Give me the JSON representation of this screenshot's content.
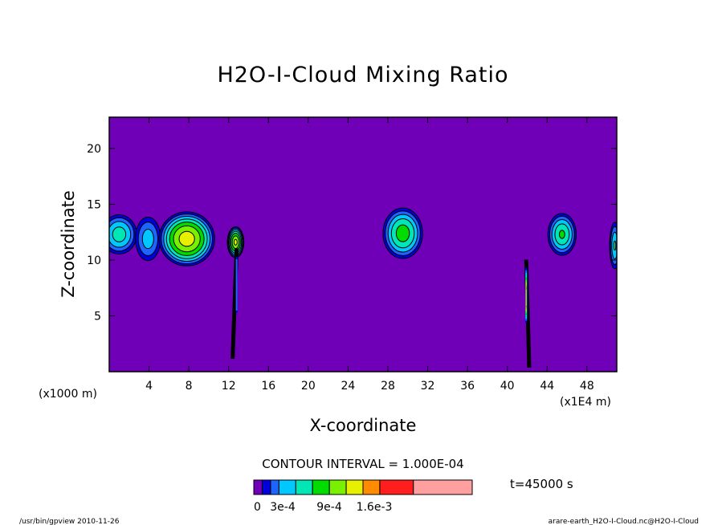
{
  "chart_data": {
    "type": "heatmap",
    "title": "H2O-I-Cloud Mixing Ratio",
    "xlabel": "X-coordinate",
    "ylabel": "Z-coordinate",
    "x_unit_label": "(x1000 m)",
    "x_scale_label": "(x1E4 m)",
    "xlim": [
      0,
      51
    ],
    "ylim": [
      0,
      22.8
    ],
    "x_ticks": [
      4,
      8,
      12,
      16,
      20,
      24,
      28,
      32,
      36,
      40,
      44,
      48
    ],
    "y_ticks": [
      5,
      10,
      15,
      20
    ],
    "background_color": "#7000b8",
    "levels": [
      0,
      0.0001,
      0.0002,
      0.0003,
      0.0004,
      0.0005,
      0.0006,
      0.0007,
      0.0008,
      0.0009,
      0.0012,
      0.0016,
      0.002
    ],
    "level_colors": [
      "#7000b8",
      "#0000dc",
      "#1e64ff",
      "#00c8ff",
      "#00e6b4",
      "#00dc00",
      "#78f000",
      "#e6f000",
      "#ff8c00",
      "#ff1e1e",
      "#ffa0a0"
    ],
    "colorbar_labels": [
      "0",
      "3e-4",
      "9e-4",
      "1.6e-3"
    ],
    "contour_interval_text": "CONTOUR INTERVAL = 1.000E-04",
    "cells": [
      {
        "x": 1.0,
        "z": 12.3,
        "rx": 2.0,
        "rz": 2.0,
        "peak": 0.00045
      },
      {
        "x": 3.9,
        "z": 11.9,
        "rx": 1.5,
        "rz": 2.3,
        "peak": 0.00035
      },
      {
        "x": 7.8,
        "z": 11.9,
        "rx": 3.0,
        "rz": 2.6,
        "peak": 0.00075
      },
      {
        "x": 12.7,
        "z": 11.6,
        "rx": 0.9,
        "rz": 1.5,
        "peak": 0.0007
      },
      {
        "x": 29.5,
        "z": 12.4,
        "rx": 2.2,
        "rz": 2.5,
        "peak": 0.00055
      },
      {
        "x": 45.5,
        "z": 12.3,
        "rx": 1.6,
        "rz": 2.1,
        "peak": 0.0005
      },
      {
        "x": 50.8,
        "z": 11.3,
        "rx": 0.6,
        "rz": 2.4,
        "peak": 0.0004
      }
    ],
    "columns": [
      {
        "x_top": 12.8,
        "x_bottom": 12.4,
        "z_top": 11.0,
        "z_bottom": 1.2,
        "peak": 0.0002
      },
      {
        "x_top": 41.9,
        "x_bottom": 42.2,
        "z_top": 10.0,
        "z_bottom": 0.4,
        "peak": 0.0013
      }
    ]
  },
  "time_label": "t=45000 s",
  "footer": {
    "left": "/usr/bin/gpview   2010-11-26",
    "right": "arare-earth_H2O-I-Cloud.nc@H2O-I-Cloud"
  }
}
